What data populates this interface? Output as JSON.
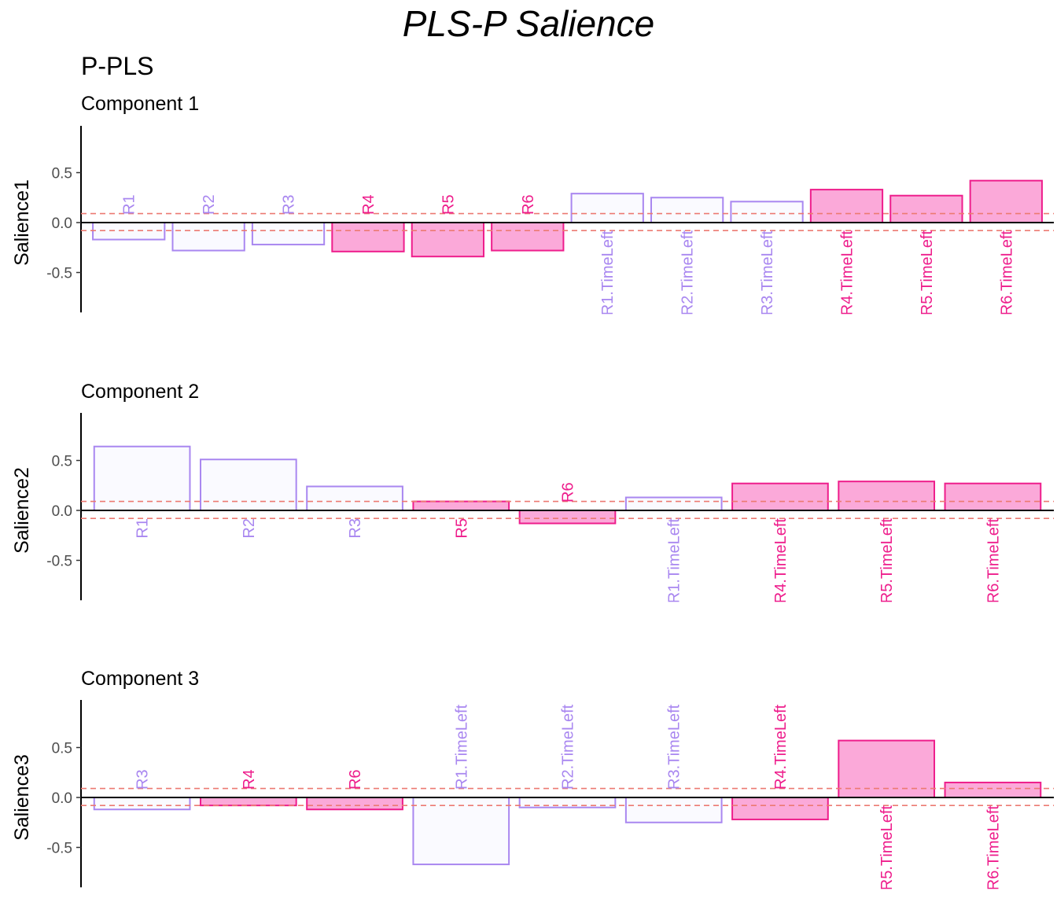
{
  "title": "PLS-P Salience",
  "subtitle": "P-PLS",
  "colors": {
    "light_fill": "#fafaff",
    "light_stroke": "#a987f0",
    "pink_fill": "#fba9d9",
    "pink_stroke": "#ee1e8c",
    "threshold_line": "#ec7a72",
    "axis": "#000000",
    "tick_text": "#4d4d4d"
  },
  "chart_data": [
    {
      "type": "bar",
      "title": "Component 1",
      "ylabel": "Salience1",
      "ylim": [
        -0.9,
        0.95
      ],
      "yticks": [
        0.5,
        0.0,
        -0.5
      ],
      "threshold": [
        0.09,
        -0.08
      ],
      "grid": false,
      "categories": [
        "R1",
        "R2",
        "R3",
        "R4",
        "R5",
        "R6",
        "R1.TimeLeft",
        "R2.TimeLeft",
        "R3.TimeLeft",
        "R4.TimeLeft",
        "R5.TimeLeft",
        "R6.TimeLeft"
      ],
      "values": [
        -0.17,
        -0.28,
        -0.22,
        -0.29,
        -0.34,
        -0.28,
        0.29,
        0.25,
        0.21,
        0.33,
        0.27,
        0.42
      ],
      "groups": [
        "light",
        "light",
        "light",
        "pink",
        "pink",
        "pink",
        "light",
        "light",
        "light",
        "pink",
        "pink",
        "pink"
      ]
    },
    {
      "type": "bar",
      "title": "Component 2",
      "ylabel": "Salience2",
      "ylim": [
        -0.9,
        0.95
      ],
      "yticks": [
        0.5,
        0.0,
        -0.5
      ],
      "threshold": [
        0.09,
        -0.08
      ],
      "grid": false,
      "categories": [
        "R1",
        "R2",
        "R3",
        "R5",
        "R6",
        "R1.TimeLeft",
        "R4.TimeLeft",
        "R5.TimeLeft",
        "R6.TimeLeft"
      ],
      "values": [
        0.64,
        0.51,
        0.24,
        0.09,
        -0.13,
        0.13,
        0.27,
        0.29,
        0.27
      ],
      "groups": [
        "light",
        "light",
        "light",
        "pink",
        "pink",
        "light",
        "pink",
        "pink",
        "pink"
      ]
    },
    {
      "type": "bar",
      "title": "Component 3",
      "ylabel": "Salience3",
      "ylim": [
        -0.9,
        0.95
      ],
      "yticks": [
        0.5,
        0.0,
        -0.5
      ],
      "threshold": [
        0.09,
        -0.08
      ],
      "grid": false,
      "categories": [
        "R3",
        "R4",
        "R6",
        "R1.TimeLeft",
        "R2.TimeLeft",
        "R3.TimeLeft",
        "R4.TimeLeft",
        "R5.TimeLeft",
        "R6.TimeLeft"
      ],
      "values": [
        -0.12,
        -0.08,
        -0.12,
        -0.67,
        -0.1,
        -0.25,
        -0.22,
        0.57,
        0.15
      ],
      "groups": [
        "light",
        "pink",
        "pink",
        "light",
        "light",
        "light",
        "pink",
        "pink",
        "pink"
      ]
    }
  ]
}
